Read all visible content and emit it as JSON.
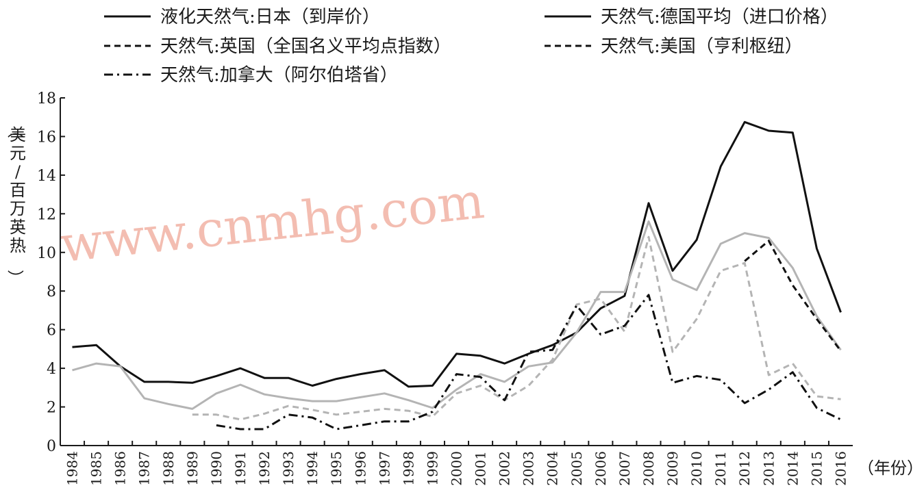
{
  "chart_data": {
    "type": "line",
    "title": "",
    "ylabel": "（美元/百万英热）",
    "xlabel": "（年份）",
    "ylim": [
      0,
      18
    ],
    "yticks": [
      0,
      2,
      4,
      6,
      8,
      10,
      12,
      14,
      16,
      18
    ],
    "categories": [
      "1984",
      "1985",
      "1986",
      "1987",
      "1988",
      "1989",
      "1990",
      "1991",
      "1992",
      "1993",
      "1994",
      "1995",
      "1996",
      "1997",
      "1998",
      "1999",
      "2000",
      "2001",
      "2002",
      "2003",
      "2004",
      "2005",
      "2006",
      "2007",
      "2008",
      "2009",
      "2010",
      "2011",
      "2012",
      "2013",
      "2014",
      "2015",
      "2016"
    ],
    "legend_position": "top",
    "grid": false,
    "watermark": "www.cnmhg.com",
    "series": [
      {
        "name": "液化天然气:日本（到岸价）",
        "color": "#111111",
        "dash": "solid",
        "values": [
          5.1,
          5.2,
          4.1,
          3.3,
          3.3,
          3.25,
          3.6,
          4.0,
          3.5,
          3.5,
          3.1,
          3.45,
          3.7,
          3.9,
          3.05,
          3.1,
          4.75,
          4.65,
          4.25,
          4.75,
          5.2,
          5.85,
          7.1,
          7.75,
          12.55,
          9.05,
          10.65,
          14.45,
          16.75,
          16.3,
          16.2,
          10.2,
          6.9
        ]
      },
      {
        "name": "天然气:德国平均（进口价格）",
        "color": "#b4b4b4",
        "dash": "solid",
        "values": [
          3.9,
          4.25,
          4.1,
          2.45,
          2.15,
          1.9,
          2.7,
          3.15,
          2.65,
          2.45,
          2.3,
          2.3,
          2.5,
          2.7,
          2.35,
          1.95,
          2.9,
          3.7,
          3.3,
          4.1,
          4.3,
          5.85,
          7.95,
          7.95,
          11.6,
          8.6,
          8.05,
          10.45,
          11.0,
          10.75,
          9.2,
          6.7,
          4.95
        ]
      },
      {
        "name": "天然气:英国（全国名义平均点指数）",
        "color": "#b4b4b4",
        "dash": "dashed",
        "values": [
          null,
          null,
          null,
          null,
          null,
          1.6,
          1.6,
          1.35,
          1.65,
          2.05,
          1.85,
          1.6,
          1.75,
          1.9,
          1.8,
          1.5,
          2.7,
          3.1,
          2.35,
          3.1,
          4.45,
          7.3,
          7.6,
          5.9,
          10.8,
          4.85,
          6.55,
          9.05,
          9.45,
          3.65,
          4.25,
          2.55,
          2.4
        ]
      },
      {
        "name": "天然气:美国（亨利枢纽）",
        "color": "#111111",
        "dash": "dashed",
        "values": [
          null,
          null,
          null,
          null,
          null,
          null,
          null,
          null,
          null,
          null,
          null,
          null,
          null,
          null,
          null,
          null,
          null,
          null,
          null,
          null,
          null,
          null,
          null,
          null,
          null,
          null,
          null,
          null,
          9.55,
          10.6,
          8.3,
          6.55,
          4.9
        ]
      },
      {
        "name": "天然气:加拿大（阿尔伯塔省）",
        "color": "#111111",
        "dash": "dashdot",
        "values": [
          null,
          null,
          null,
          null,
          null,
          null,
          1.05,
          0.85,
          0.85,
          1.6,
          1.45,
          0.85,
          1.05,
          1.25,
          1.25,
          1.75,
          3.7,
          3.55,
          2.35,
          4.85,
          4.95,
          7.25,
          5.75,
          6.2,
          7.8,
          3.25,
          3.6,
          3.4,
          2.2,
          2.9,
          3.8,
          1.95,
          1.35
        ]
      }
    ]
  }
}
